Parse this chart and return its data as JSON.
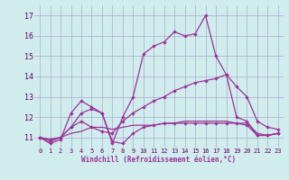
{
  "xlabel": "Windchill (Refroidissement éolien,°C)",
  "bg_color": "#d0ecec",
  "grid_color": "#aaaacc",
  "line_color": "#993399",
  "ylim": [
    10.5,
    17.5
  ],
  "xlim": [
    -0.5,
    23.5
  ],
  "yticks": [
    11,
    12,
    13,
    14,
    15,
    16,
    17
  ],
  "xticks": [
    0,
    1,
    2,
    3,
    4,
    5,
    6,
    7,
    8,
    9,
    10,
    11,
    12,
    13,
    14,
    15,
    16,
    17,
    18,
    19,
    20,
    21,
    22,
    23
  ],
  "xtick_labels": [
    "0",
    "1",
    "2",
    "3",
    "4",
    "5",
    "6",
    "7",
    "8",
    "9",
    "10",
    "11",
    "12",
    "13",
    "14",
    "15",
    "16",
    "17",
    "18",
    "19",
    "20",
    "21",
    "22",
    "23"
  ],
  "line1_x": [
    0,
    1,
    2,
    3,
    4,
    5,
    6,
    7,
    8,
    9,
    10,
    11,
    12,
    13,
    14,
    15,
    16,
    17,
    18,
    19,
    20,
    21,
    22,
    23
  ],
  "line1_y": [
    11.0,
    10.7,
    10.9,
    12.2,
    12.8,
    12.5,
    12.2,
    10.7,
    12.0,
    13.0,
    15.1,
    15.5,
    15.7,
    16.2,
    16.0,
    16.1,
    17.0,
    15.0,
    14.1,
    12.0,
    11.8,
    11.1,
    11.1,
    11.2
  ],
  "line2_x": [
    0,
    1,
    2,
    3,
    4,
    5,
    6,
    7,
    8,
    9,
    10,
    11,
    12,
    13,
    14,
    15,
    16,
    17,
    18,
    19,
    20,
    21,
    22,
    23
  ],
  "line2_y": [
    11.0,
    10.8,
    11.0,
    11.5,
    11.8,
    11.5,
    11.3,
    11.2,
    11.8,
    12.2,
    12.5,
    12.8,
    13.0,
    13.3,
    13.5,
    13.7,
    13.8,
    13.9,
    14.1,
    13.5,
    13.0,
    11.8,
    11.5,
    11.4
  ],
  "line3_x": [
    0,
    1,
    2,
    3,
    4,
    5,
    6,
    7,
    8,
    9,
    10,
    11,
    12,
    13,
    14,
    15,
    16,
    17,
    18,
    19,
    20,
    21,
    22,
    23
  ],
  "line3_y": [
    11.0,
    10.9,
    11.0,
    11.2,
    11.3,
    11.5,
    11.5,
    11.4,
    11.5,
    11.6,
    11.6,
    11.6,
    11.7,
    11.7,
    11.8,
    11.8,
    11.8,
    11.8,
    11.8,
    11.7,
    11.7,
    11.2,
    11.1,
    11.2
  ],
  "line4_x": [
    0,
    1,
    2,
    3,
    4,
    5,
    6,
    7,
    8,
    9,
    10,
    11,
    12,
    13,
    14,
    15,
    16,
    17,
    18,
    19,
    20,
    21,
    22,
    23
  ],
  "line4_y": [
    11.0,
    10.9,
    11.0,
    11.5,
    12.2,
    12.4,
    12.2,
    10.8,
    10.7,
    11.2,
    11.5,
    11.6,
    11.7,
    11.7,
    11.7,
    11.7,
    11.7,
    11.7,
    11.7,
    11.7,
    11.6,
    11.1,
    11.1,
    11.2
  ]
}
